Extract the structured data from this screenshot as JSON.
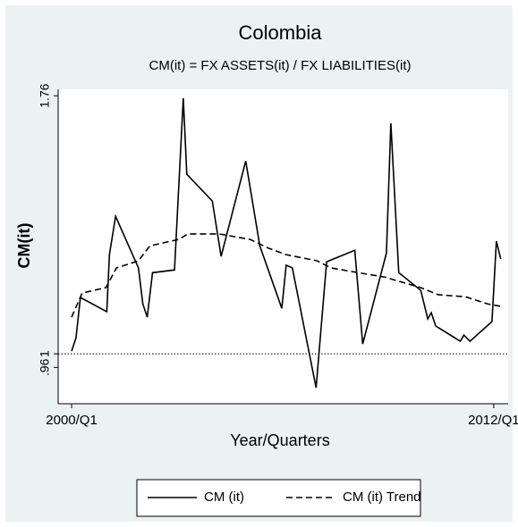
{
  "chart_data": {
    "type": "line",
    "title": "Colombia",
    "subtitle": "CM(it) = FX ASSETS(it) / FX LIABILITIES(it)",
    "x_label": "Year/Quarters",
    "y_label": "CM(it)",
    "xlim": [
      -1.53,
      49.64
    ],
    "ylim": [
      0.853,
      1.779
    ],
    "xticks": [
      {
        "value": 0,
        "label": "2000/Q1"
      },
      {
        "value": 48,
        "label": "2012/Q1"
      }
    ],
    "yticks": [
      {
        "value": 0.96,
        "label": ".96"
      },
      1,
      1.76
    ],
    "yline": 1,
    "series": [
      {
        "name": "CM (it)",
        "color": "#000000",
        "dash": "solid",
        "x": [
          0.0,
          0.5,
          1.0,
          4.0,
          4.3,
          5.0,
          7.6,
          8.1,
          8.6,
          9.2,
          11.7,
          12.7,
          13.1,
          16.0,
          17.0,
          19.8,
          21.4,
          23.9,
          24.4,
          25.1,
          27.8,
          29.0,
          32.2,
          33.1,
          35.8,
          36.3,
          37.2,
          39.7,
          40.5,
          40.9,
          41.4,
          44.2,
          44.6,
          45.3,
          47.8,
          48.3,
          48.8
        ],
        "values": [
          1.008,
          1.047,
          1.166,
          1.124,
          1.292,
          1.405,
          1.253,
          1.147,
          1.108,
          1.239,
          1.247,
          1.753,
          1.529,
          1.45,
          1.287,
          1.568,
          1.318,
          1.134,
          1.261,
          1.253,
          0.9,
          1.271,
          1.305,
          1.029,
          1.297,
          1.679,
          1.239,
          1.187,
          1.103,
          1.121,
          1.082,
          1.037,
          1.055,
          1.037,
          1.095,
          1.332,
          1.279
        ]
      },
      {
        "name": "CM (it) Trend",
        "color": "#000000",
        "dash": "dashed",
        "x": [
          0.0,
          1.2,
          3.9,
          5.1,
          7.6,
          8.9,
          12.2,
          13.2,
          16.8,
          20.3,
          22.4,
          24.4,
          27.9,
          29.5,
          32.6,
          35.6,
          39.7,
          41.7,
          44.8,
          47.3,
          49.0
        ],
        "values": [
          1.108,
          1.179,
          1.195,
          1.253,
          1.274,
          1.318,
          1.337,
          1.353,
          1.353,
          1.337,
          1.311,
          1.292,
          1.274,
          1.253,
          1.239,
          1.226,
          1.195,
          1.174,
          1.168,
          1.147,
          1.139
        ]
      }
    ]
  }
}
